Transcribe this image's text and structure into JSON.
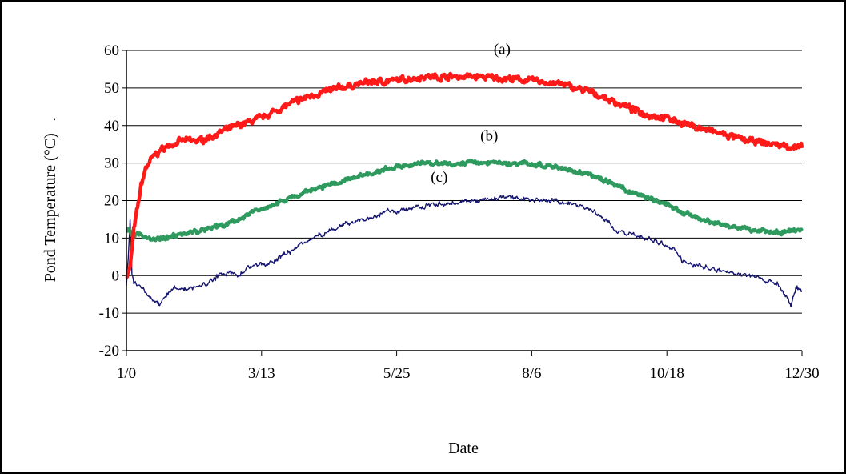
{
  "chart_data": {
    "type": "line",
    "title": "",
    "xlabel": "Date",
    "ylabel": "Pond Temperature (°C)",
    "ylabel_suffix": ".",
    "ylim": [
      -20,
      60
    ],
    "yticks": [
      -20,
      -10,
      0,
      10,
      20,
      30,
      40,
      50,
      60
    ],
    "xlim": [
      0,
      365
    ],
    "xticks": [
      {
        "value": 0,
        "label": "1/0"
      },
      {
        "value": 73,
        "label": "3/13"
      },
      {
        "value": 146,
        "label": "5/25"
      },
      {
        "value": 219,
        "label": "8/6"
      },
      {
        "value": 292,
        "label": "10/18"
      },
      {
        "value": 365,
        "label": "12/30"
      }
    ],
    "grid": "horizontal",
    "legend": "none",
    "series": [
      {
        "label": "(a)",
        "color": "#ff1a1a",
        "points": [
          [
            0,
            0
          ],
          [
            2,
            2
          ],
          [
            4,
            12
          ],
          [
            6,
            18
          ],
          [
            8,
            24
          ],
          [
            10,
            28
          ],
          [
            12,
            30
          ],
          [
            15,
            32
          ],
          [
            20,
            34
          ],
          [
            25,
            35
          ],
          [
            30,
            36
          ],
          [
            35,
            36
          ],
          [
            40,
            36
          ],
          [
            45,
            37
          ],
          [
            50,
            38
          ],
          [
            60,
            40
          ],
          [
            73,
            42
          ],
          [
            85,
            45
          ],
          [
            100,
            48
          ],
          [
            115,
            50
          ],
          [
            130,
            51.5
          ],
          [
            146,
            52
          ],
          [
            160,
            53
          ],
          [
            175,
            53
          ],
          [
            190,
            53
          ],
          [
            205,
            52.5
          ],
          [
            219,
            52
          ],
          [
            235,
            51
          ],
          [
            250,
            49
          ],
          [
            265,
            46
          ],
          [
            280,
            43
          ],
          [
            292,
            42
          ],
          [
            305,
            40
          ],
          [
            320,
            38
          ],
          [
            335,
            36
          ],
          [
            350,
            35
          ],
          [
            365,
            34
          ]
        ]
      },
      {
        "label": "(b)",
        "color": "#2e9a5e",
        "points": [
          [
            0,
            13
          ],
          [
            3,
            11
          ],
          [
            6,
            11
          ],
          [
            10,
            10.5
          ],
          [
            13,
            10
          ],
          [
            17,
            9.5
          ],
          [
            20,
            10
          ],
          [
            25,
            10.5
          ],
          [
            30,
            11
          ],
          [
            40,
            12
          ],
          [
            50,
            13
          ],
          [
            60,
            15
          ],
          [
            73,
            18
          ],
          [
            85,
            20
          ],
          [
            100,
            23
          ],
          [
            115,
            25
          ],
          [
            130,
            27
          ],
          [
            146,
            29
          ],
          [
            160,
            30
          ],
          [
            175,
            30
          ],
          [
            190,
            30
          ],
          [
            205,
            30
          ],
          [
            219,
            30
          ],
          [
            235,
            28.5
          ],
          [
            250,
            27
          ],
          [
            265,
            24
          ],
          [
            280,
            21
          ],
          [
            292,
            19
          ],
          [
            300,
            17
          ],
          [
            310,
            15
          ],
          [
            320,
            14
          ],
          [
            330,
            13
          ],
          [
            340,
            12
          ],
          [
            350,
            11.5
          ],
          [
            365,
            12
          ]
        ]
      },
      {
        "label": "(c)",
        "color": "#14146e",
        "points": [
          [
            0,
            -2
          ],
          [
            1,
            5
          ],
          [
            2,
            15
          ],
          [
            3,
            0
          ],
          [
            4,
            -2
          ],
          [
            8,
            -3
          ],
          [
            12,
            -5
          ],
          [
            15,
            -7
          ],
          [
            18,
            -8
          ],
          [
            22,
            -5
          ],
          [
            26,
            -3
          ],
          [
            30,
            -4
          ],
          [
            35,
            -3
          ],
          [
            40,
            -3
          ],
          [
            45,
            -2
          ],
          [
            50,
            0
          ],
          [
            55,
            1
          ],
          [
            60,
            0
          ],
          [
            65,
            2
          ],
          [
            73,
            3
          ],
          [
            80,
            4
          ],
          [
            90,
            7
          ],
          [
            100,
            10
          ],
          [
            110,
            12
          ],
          [
            120,
            14
          ],
          [
            130,
            15
          ],
          [
            140,
            17
          ],
          [
            146,
            17
          ],
          [
            155,
            18
          ],
          [
            165,
            19
          ],
          [
            175,
            19
          ],
          [
            185,
            20
          ],
          [
            195,
            20
          ],
          [
            205,
            21
          ],
          [
            219,
            20
          ],
          [
            230,
            20
          ],
          [
            240,
            19
          ],
          [
            250,
            18
          ],
          [
            258,
            15
          ],
          [
            265,
            12
          ],
          [
            272,
            11
          ],
          [
            280,
            10
          ],
          [
            288,
            9
          ],
          [
            292,
            8
          ],
          [
            296,
            7
          ],
          [
            300,
            4
          ],
          [
            305,
            3
          ],
          [
            315,
            2
          ],
          [
            325,
            1
          ],
          [
            335,
            0
          ],
          [
            345,
            -1
          ],
          [
            352,
            -2
          ],
          [
            356,
            -5
          ],
          [
            359,
            -8
          ],
          [
            362,
            -3
          ],
          [
            365,
            -4
          ]
        ]
      }
    ]
  }
}
